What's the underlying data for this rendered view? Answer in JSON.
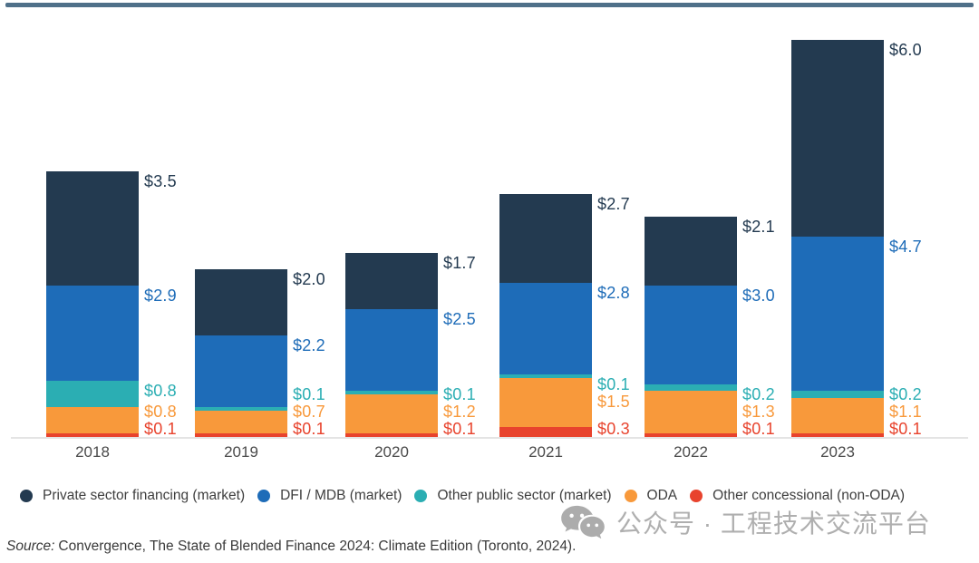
{
  "chart_data": {
    "type": "bar",
    "stacked": true,
    "title": "",
    "categories": [
      "2018",
      "2019",
      "2020",
      "2021",
      "2022",
      "2023"
    ],
    "series": [
      {
        "name": "Private sector financing (market)",
        "color": "#233A50",
        "values": [
          3.5,
          2.0,
          1.7,
          2.7,
          2.1,
          6.0
        ]
      },
      {
        "name": "DFI / MDB (market)",
        "color": "#1E6CB8",
        "values": [
          2.9,
          2.2,
          2.5,
          2.8,
          3.0,
          4.7
        ]
      },
      {
        "name": "Other public sector (market)",
        "color": "#2BAEB3",
        "values": [
          0.8,
          0.1,
          0.1,
          0.1,
          0.2,
          0.2
        ]
      },
      {
        "name": "ODA",
        "color": "#F8993B",
        "values": [
          0.8,
          0.7,
          1.2,
          1.5,
          1.3,
          1.1
        ]
      },
      {
        "name": "Other concessional (non-ODA)",
        "color": "#E8432D",
        "values": [
          0.1,
          0.1,
          0.1,
          0.3,
          0.1,
          0.1
        ]
      }
    ],
    "stack_order_bottom_to_top": [
      "Other concessional (non-ODA)",
      "ODA",
      "Other public sector (market)",
      "DFI / MDB (market)",
      "Private sector financing (market)"
    ],
    "data_label_prefix": "$",
    "legend_position": "bottom",
    "grid": false,
    "y_axis_visible": false,
    "x_axis_line": true,
    "ylim": [
      0,
      12.1
    ]
  },
  "watermark": {
    "icon": "wechat-icon",
    "text": "公众号 · 工程技术交流平台"
  },
  "source": {
    "prefix": "Source:",
    "text": "Convergence, The State of Blended Finance 2024: Climate Edition (Toronto, 2024)."
  },
  "colors": {
    "top_rule": "#4F7089",
    "axis_line": "#E4E4E4",
    "year_label": "#4A4A4A",
    "legend_text": "#3E3E3E",
    "source_text": "#3A3A3A",
    "watermark": "#AFAFAF"
  }
}
